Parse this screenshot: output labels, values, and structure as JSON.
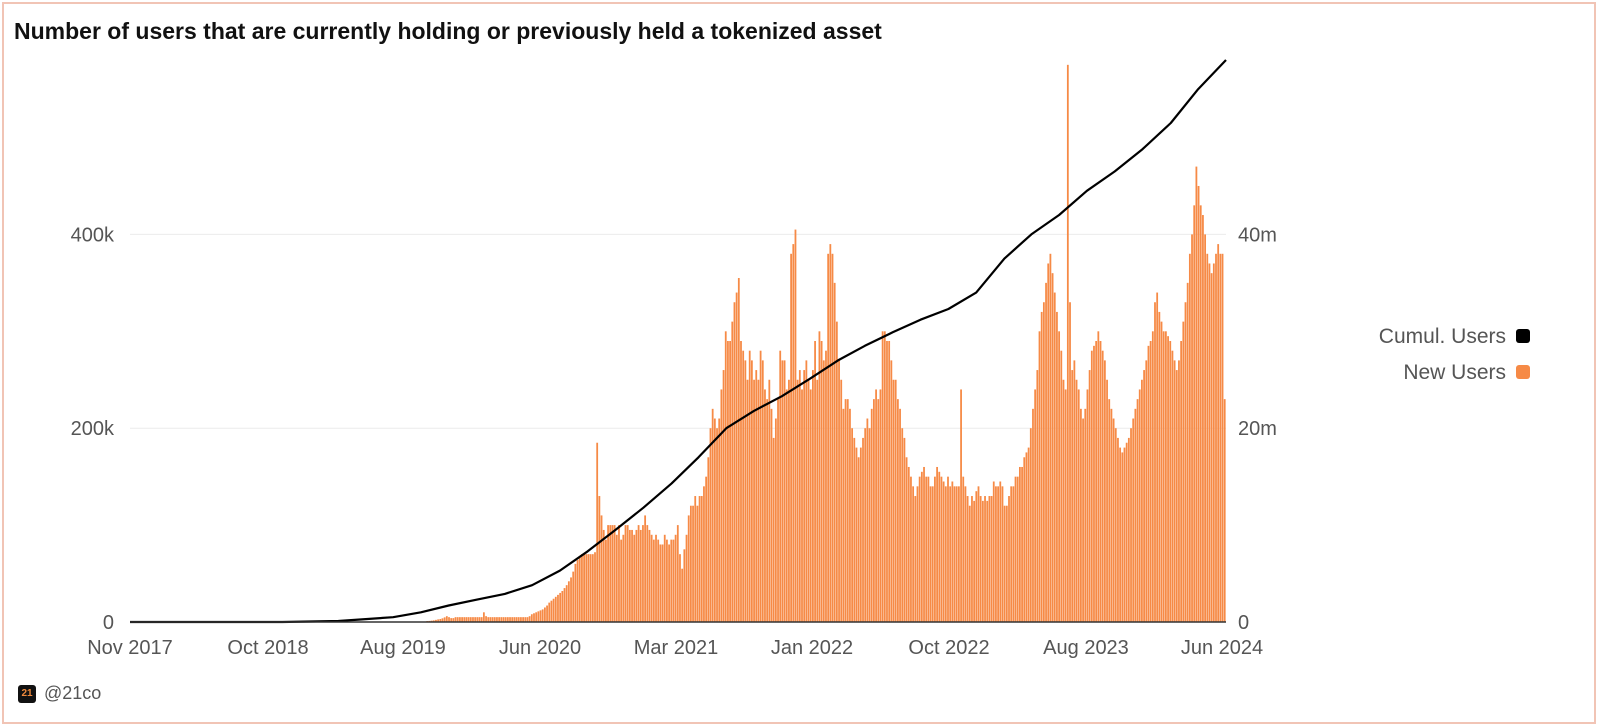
{
  "title": "Number of users that are currently holding or previously held a tokenized asset",
  "footer": {
    "logo_text": "21",
    "handle": "@21co"
  },
  "chart_data": {
    "type": "bar",
    "x_tick_labels": [
      "Nov 2017",
      "Oct 2018",
      "Aug 2019",
      "Jun 2020",
      "Mar 2021",
      "Jan 2022",
      "Oct 2022",
      "Aug 2023",
      "Jun 2024"
    ],
    "y_left": {
      "ticks": [
        "0",
        "200k",
        "400k"
      ],
      "tick_values": [
        0,
        200000,
        400000
      ],
      "ylim": [
        0,
        580000
      ]
    },
    "y_right": {
      "ticks": [
        "0",
        "20m",
        "40m"
      ],
      "tick_values": [
        0,
        20000000,
        40000000
      ],
      "ylim": [
        0,
        58000000
      ]
    },
    "legend": {
      "placement": "right",
      "items": [
        {
          "name": "Cumul. Users",
          "color": "#000000"
        },
        {
          "name": "New Users",
          "color": "#f68a46"
        }
      ]
    },
    "bar_color": "#f68a46",
    "line_color": "#000000",
    "grid": true,
    "series": [
      {
        "name": "New Users",
        "type": "bar",
        "axis": "left",
        "values": [
          0,
          0,
          0,
          0,
          0,
          0,
          0,
          0,
          0,
          0,
          0,
          0,
          0,
          0,
          0,
          0,
          0,
          0,
          0,
          0,
          0,
          0,
          0,
          0,
          0,
          0,
          0,
          0,
          0,
          0,
          0,
          0,
          0,
          0,
          0,
          0,
          0,
          0,
          0,
          0,
          0,
          0,
          0,
          0,
          0,
          0,
          0,
          0,
          0,
          0,
          0,
          0,
          0,
          0,
          0,
          0,
          0,
          0,
          0,
          0,
          0,
          0,
          0,
          0,
          0,
          0,
          0,
          0,
          0,
          0,
          0,
          0,
          0,
          0,
          0,
          0,
          0,
          0,
          0,
          0,
          0,
          0,
          0,
          0,
          0,
          0,
          0,
          0,
          0,
          0,
          0,
          0,
          0,
          0,
          0,
          0,
          0,
          0,
          0,
          0,
          0,
          0,
          0,
          0,
          0,
          0,
          0,
          0,
          0,
          0,
          0,
          0,
          0,
          0,
          0,
          0,
          0,
          0,
          0,
          0,
          0,
          0,
          0,
          0,
          0,
          0,
          0,
          0,
          0,
          0,
          0,
          0,
          0,
          0,
          0,
          0,
          1000,
          1100,
          1400,
          1700,
          2200,
          2700,
          3100,
          3800,
          4800,
          6000,
          5000,
          4000,
          4000,
          5000,
          5000,
          5000,
          5000,
          5000,
          5000,
          5000,
          5000,
          5000,
          5000,
          5000,
          5000,
          5000,
          10000,
          6000,
          5000,
          5000,
          5000,
          5000,
          5000,
          5000,
          5000,
          5000,
          5000,
          5000,
          5000,
          5000,
          5000,
          5000,
          5000,
          5000,
          5000,
          5000,
          5000,
          6000,
          8000,
          9000,
          10000,
          11000,
          12000,
          13000,
          15000,
          17000,
          20000,
          22000,
          24000,
          26000,
          28000,
          30000,
          32000,
          35000,
          38000,
          42000,
          46000,
          52000,
          60000,
          64000,
          68000,
          70000,
          70000,
          70000,
          70000,
          70000,
          70000,
          72000,
          185000,
          130000,
          110000,
          95000,
          85000,
          100000,
          100000,
          100000,
          100000,
          90000,
          100000,
          85000,
          90000,
          100000,
          100000,
          95000,
          95000,
          90000,
          95000,
          100000,
          95000,
          100000,
          110000,
          100000,
          95000,
          90000,
          85000,
          90000,
          85000,
          80000,
          80000,
          90000,
          85000,
          80000,
          85000,
          85000,
          90000,
          100000,
          70000,
          55000,
          75000,
          90000,
          110000,
          120000,
          120000,
          130000,
          120000,
          130000,
          130000,
          140000,
          150000,
          170000,
          200000,
          220000,
          210000,
          200000,
          210000,
          240000,
          260000,
          300000,
          290000,
          290000,
          310000,
          330000,
          340000,
          355000,
          290000,
          280000,
          270000,
          250000,
          280000,
          270000,
          250000,
          260000,
          250000,
          280000,
          270000,
          240000,
          230000,
          250000,
          220000,
          190000,
          210000,
          230000,
          280000,
          270000,
          270000,
          240000,
          250000,
          380000,
          390000,
          405000,
          250000,
          260000,
          240000,
          260000,
          270000,
          250000,
          240000,
          260000,
          290000,
          250000,
          300000,
          290000,
          270000,
          280000,
          380000,
          390000,
          380000,
          350000,
          310000,
          270000,
          250000,
          220000,
          230000,
          230000,
          220000,
          200000,
          190000,
          180000,
          170000,
          180000,
          190000,
          200000,
          210000,
          200000,
          220000,
          230000,
          240000,
          230000,
          240000,
          300000,
          300000,
          290000,
          290000,
          270000,
          250000,
          250000,
          230000,
          220000,
          200000,
          190000,
          170000,
          160000,
          150000,
          140000,
          130000,
          140000,
          150000,
          155000,
          160000,
          150000,
          150000,
          140000,
          140000,
          150000,
          160000,
          155000,
          150000,
          145000,
          140000,
          150000,
          140000,
          145000,
          140000,
          140000,
          140000,
          240000,
          150000,
          140000,
          130000,
          120000,
          130000,
          125000,
          135000,
          140000,
          130000,
          125000,
          130000,
          125000,
          130000,
          130000,
          145000,
          140000,
          140000,
          145000,
          140000,
          120000,
          120000,
          130000,
          140000,
          140000,
          150000,
          150000,
          160000,
          160000,
          170000,
          175000,
          180000,
          200000,
          220000,
          240000,
          260000,
          300000,
          320000,
          330000,
          350000,
          370000,
          380000,
          360000,
          340000,
          320000,
          300000,
          280000,
          250000,
          240000,
          575000,
          330000,
          260000,
          270000,
          250000,
          240000,
          220000,
          210000,
          220000,
          240000,
          260000,
          280000,
          285000,
          290000,
          300000,
          290000,
          280000,
          270000,
          250000,
          230000,
          220000,
          210000,
          200000,
          190000,
          180000,
          175000,
          180000,
          185000,
          190000,
          200000,
          210000,
          220000,
          230000,
          240000,
          250000,
          260000,
          270000,
          285000,
          290000,
          300000,
          330000,
          340000,
          320000,
          310000,
          300000,
          300000,
          295000,
          290000,
          280000,
          270000,
          260000,
          270000,
          290000,
          310000,
          330000,
          350000,
          380000,
          400000,
          430000,
          470000,
          450000,
          430000,
          420000,
          400000,
          380000,
          370000,
          360000,
          370000,
          380000,
          390000,
          380000,
          380000,
          230000
        ]
      },
      {
        "name": "Cumul. Users",
        "type": "line",
        "axis": "right",
        "points": [
          [
            "2017-11-01",
            0
          ],
          [
            "2018-06-01",
            0
          ],
          [
            "2018-10-01",
            0
          ],
          [
            "2019-02-01",
            100000
          ],
          [
            "2019-06-01",
            500000
          ],
          [
            "2019-08-01",
            1000000
          ],
          [
            "2019-10-01",
            1700000
          ],
          [
            "2019-12-01",
            2300000
          ],
          [
            "2020-02-01",
            2900000
          ],
          [
            "2020-04-01",
            3800000
          ],
          [
            "2020-06-01",
            5300000
          ],
          [
            "2020-08-01",
            7300000
          ],
          [
            "2020-10-01",
            9500000
          ],
          [
            "2020-12-01",
            11800000
          ],
          [
            "2021-02-01",
            14300000
          ],
          [
            "2021-04-01",
            17000000
          ],
          [
            "2021-06-01",
            20000000
          ],
          [
            "2021-08-01",
            21800000
          ],
          [
            "2021-10-01",
            23300000
          ],
          [
            "2021-12-01",
            25100000
          ],
          [
            "2022-02-01",
            27000000
          ],
          [
            "2022-04-01",
            28500000
          ],
          [
            "2022-06-01",
            29900000
          ],
          [
            "2022-08-01",
            31200000
          ],
          [
            "2022-10-01",
            32300000
          ],
          [
            "2022-12-01",
            34000000
          ],
          [
            "2023-02-01",
            37500000
          ],
          [
            "2023-04-01",
            40000000
          ],
          [
            "2023-06-01",
            42000000
          ],
          [
            "2023-08-01",
            44500000
          ],
          [
            "2023-10-01",
            46500000
          ],
          [
            "2023-12-01",
            48800000
          ],
          [
            "2024-02-01",
            51500000
          ],
          [
            "2024-04-01",
            55000000
          ],
          [
            "2024-06-01",
            58000000
          ]
        ]
      }
    ]
  }
}
